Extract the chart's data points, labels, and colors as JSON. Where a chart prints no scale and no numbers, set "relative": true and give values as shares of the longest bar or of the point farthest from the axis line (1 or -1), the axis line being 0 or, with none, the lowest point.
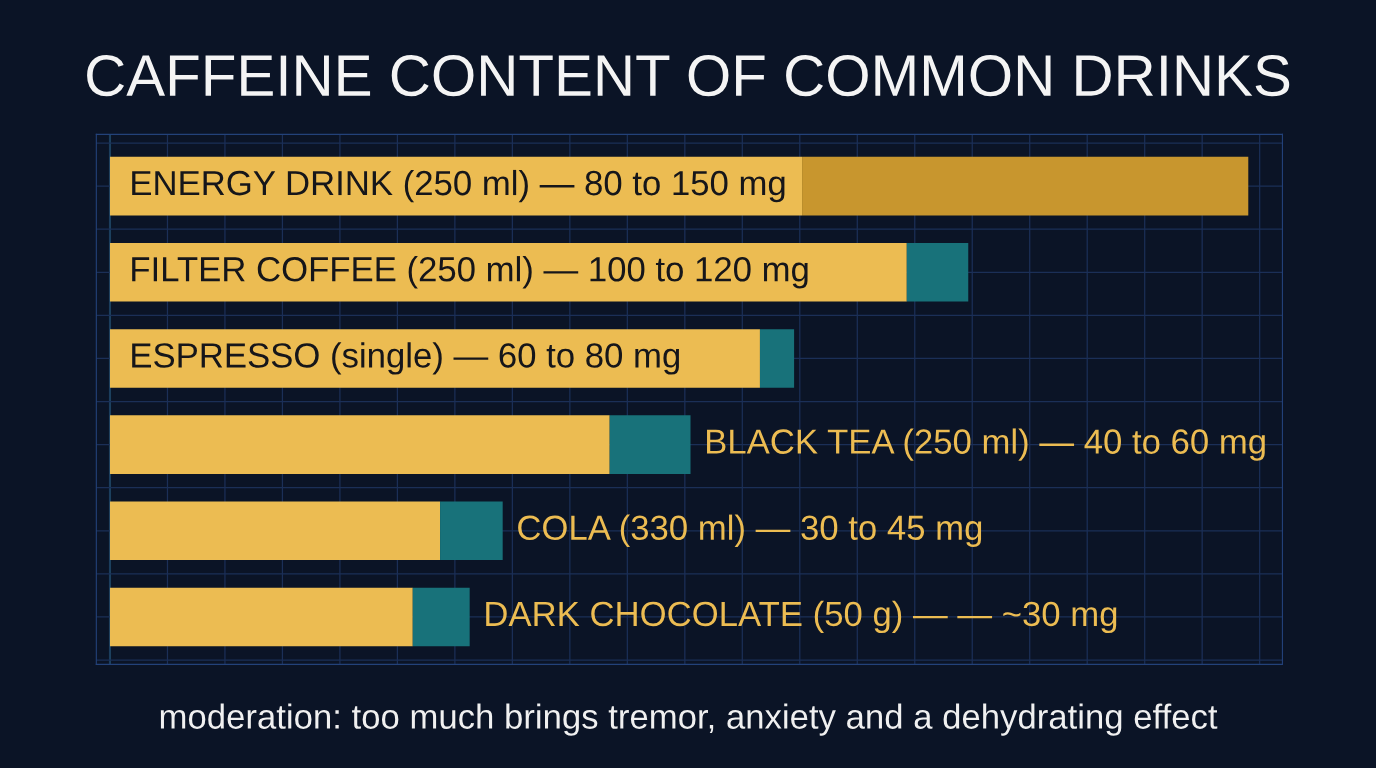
{
  "chart_data": {
    "type": "bar",
    "orientation": "horizontal",
    "stacked": true,
    "relative": true,
    "grid": true,
    "title": "CAFFEINE CONTENT OF COMMON DRINKS",
    "categories": [
      "ENERGY DRINK (250 ml) — 80 to 150 mg",
      "FILTER COFFEE (250 ml) — 100 to 120 mg",
      "ESPRESSO (single) — 60 to 80 mg",
      "BLACK TEA (250 ml) — 40 to 60 mg",
      "COLA (330 ml) — 30 to 45 mg",
      "DARK CHOCOLATE (50 g) — — ~30 mg"
    ],
    "series": [
      {
        "color": "#ecbc52",
        "values": [
          0.608,
          0.7,
          0.571,
          0.439,
          0.29,
          0.266
        ]
      },
      {
        "colors": [
          "#c8962e",
          "#18727a",
          "#18727a",
          "#18727a",
          "#18727a",
          "#18727a"
        ],
        "values": [
          0.392,
          0.054,
          0.03,
          0.071,
          0.055,
          0.05
        ]
      }
    ],
    "annotations": [
      "moderation: too much brings tremor, anxiety and a dehydrating effect"
    ]
  }
}
